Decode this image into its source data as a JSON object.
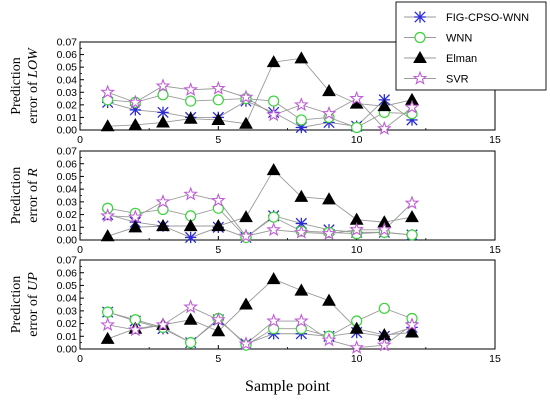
{
  "chart_data": [
    {
      "type": "line",
      "ylabel_prefix": "Prediction",
      "ylabel_line2": "error of ",
      "ylabel_var": "LOW",
      "x": [
        1,
        2,
        3,
        4,
        5,
        6,
        7,
        8,
        9,
        10,
        11,
        12
      ],
      "xlim": [
        0,
        15
      ],
      "xticks": [
        "0",
        "5",
        "10",
        "15"
      ],
      "ylim": [
        0,
        0.07
      ],
      "yticks": [
        "0.00",
        "0.01",
        "0.02",
        "0.03",
        "0.04",
        "0.05",
        "0.06",
        "0.07"
      ],
      "series": [
        {
          "name": "FIG-CPSO-WNN",
          "values": [
            0.022,
            0.016,
            0.014,
            0.01,
            0.01,
            0.023,
            0.014,
            0.002,
            0.006,
            0.003,
            0.024,
            0.008
          ]
        },
        {
          "name": "WNN",
          "values": [
            0.024,
            0.022,
            0.028,
            0.023,
            0.024,
            0.025,
            0.023,
            0.008,
            0.01,
            0.002,
            0.014,
            0.013
          ]
        },
        {
          "name": "Elman",
          "values": [
            0.003,
            0.004,
            0.006,
            0.009,
            0.008,
            0.005,
            0.054,
            0.057,
            0.031,
            0.021,
            0.019,
            0.024
          ]
        },
        {
          "name": "SVR",
          "values": [
            0.03,
            0.022,
            0.035,
            0.032,
            0.033,
            0.026,
            0.012,
            0.02,
            0.013,
            0.025,
            0.001,
            0.018
          ]
        }
      ]
    },
    {
      "type": "line",
      "ylabel_prefix": "Prediction",
      "ylabel_line2": "error of ",
      "ylabel_var": "R",
      "x": [
        1,
        2,
        3,
        4,
        5,
        6,
        7,
        8,
        9,
        10,
        11,
        12
      ],
      "xlim": [
        0,
        15
      ],
      "xticks": [
        "0",
        "5",
        "10",
        "15"
      ],
      "ylim": [
        0,
        0.07
      ],
      "yticks": [
        "0.00",
        "0.01",
        "0.02",
        "0.03",
        "0.04",
        "0.05",
        "0.06",
        "0.07"
      ],
      "series": [
        {
          "name": "FIG-CPSO-WNN",
          "values": [
            0.02,
            0.014,
            0.011,
            0.002,
            0.01,
            0.002,
            0.019,
            0.013,
            0.008,
            0.006,
            0.006,
            0.004
          ]
        },
        {
          "name": "WNN",
          "values": [
            0.025,
            0.021,
            0.024,
            0.019,
            0.025,
            0.002,
            0.018,
            0.007,
            0.006,
            0.005,
            0.006,
            0.004
          ]
        },
        {
          "name": "Elman",
          "values": [
            0.003,
            0.01,
            0.011,
            0.011,
            0.011,
            0.018,
            0.055,
            0.034,
            0.032,
            0.016,
            0.014,
            0.018
          ]
        },
        {
          "name": "SVR",
          "values": [
            0.019,
            0.018,
            0.03,
            0.036,
            0.031,
            0.003,
            0.008,
            0.006,
            0.005,
            0.008,
            0.008,
            0.029
          ]
        }
      ]
    },
    {
      "type": "line",
      "ylabel_prefix": "Prediction",
      "ylabel_line2": "error of ",
      "ylabel_var": "UP",
      "x": [
        1,
        2,
        3,
        4,
        5,
        6,
        7,
        8,
        9,
        10,
        11,
        12
      ],
      "xlim": [
        0,
        15
      ],
      "xticks": [
        "0",
        "5",
        "10",
        "15"
      ],
      "ylim": [
        0,
        0.07
      ],
      "yticks": [
        "0.00",
        "0.01",
        "0.02",
        "0.03",
        "0.04",
        "0.05",
        "0.06",
        "0.07"
      ],
      "xlabel": "Sample point",
      "series": [
        {
          "name": "FIG-CPSO-WNN",
          "values": [
            0.029,
            0.022,
            0.016,
            0.005,
            0.023,
            0.004,
            0.012,
            0.012,
            0.01,
            0.013,
            0.01,
            0.017
          ]
        },
        {
          "name": "WNN",
          "values": [
            0.029,
            0.023,
            0.017,
            0.005,
            0.024,
            0.003,
            0.016,
            0.016,
            0.01,
            0.022,
            0.032,
            0.024
          ]
        },
        {
          "name": "Elman",
          "values": [
            0.008,
            0.016,
            0.019,
            0.023,
            0.014,
            0.035,
            0.055,
            0.046,
            0.038,
            0.016,
            0.011,
            0.013
          ]
        },
        {
          "name": "SVR",
          "values": [
            0.019,
            0.015,
            0.019,
            0.033,
            0.023,
            0.004,
            0.022,
            0.022,
            0.007,
            0.001,
            0.003,
            0.019
          ]
        }
      ]
    }
  ],
  "legend": {
    "placement": "top-right",
    "items": [
      {
        "label": "FIG-CPSO-WNN",
        "marker": "asterisk",
        "color": "#2b2bd6"
      },
      {
        "label": "WNN",
        "marker": "circle",
        "color": "#3bd33b"
      },
      {
        "label": "Elman",
        "marker": "triangle",
        "color": "#000000"
      },
      {
        "label": "SVR",
        "marker": "star",
        "color": "#c05cd6"
      }
    ]
  },
  "colors": {
    "FIG-CPSO-WNN": "#2b2bd6",
    "WNN": "#3bd33b",
    "Elman": "#000000",
    "SVR": "#c05cd6",
    "axis": "#000000",
    "line": "#9a9a9a"
  }
}
